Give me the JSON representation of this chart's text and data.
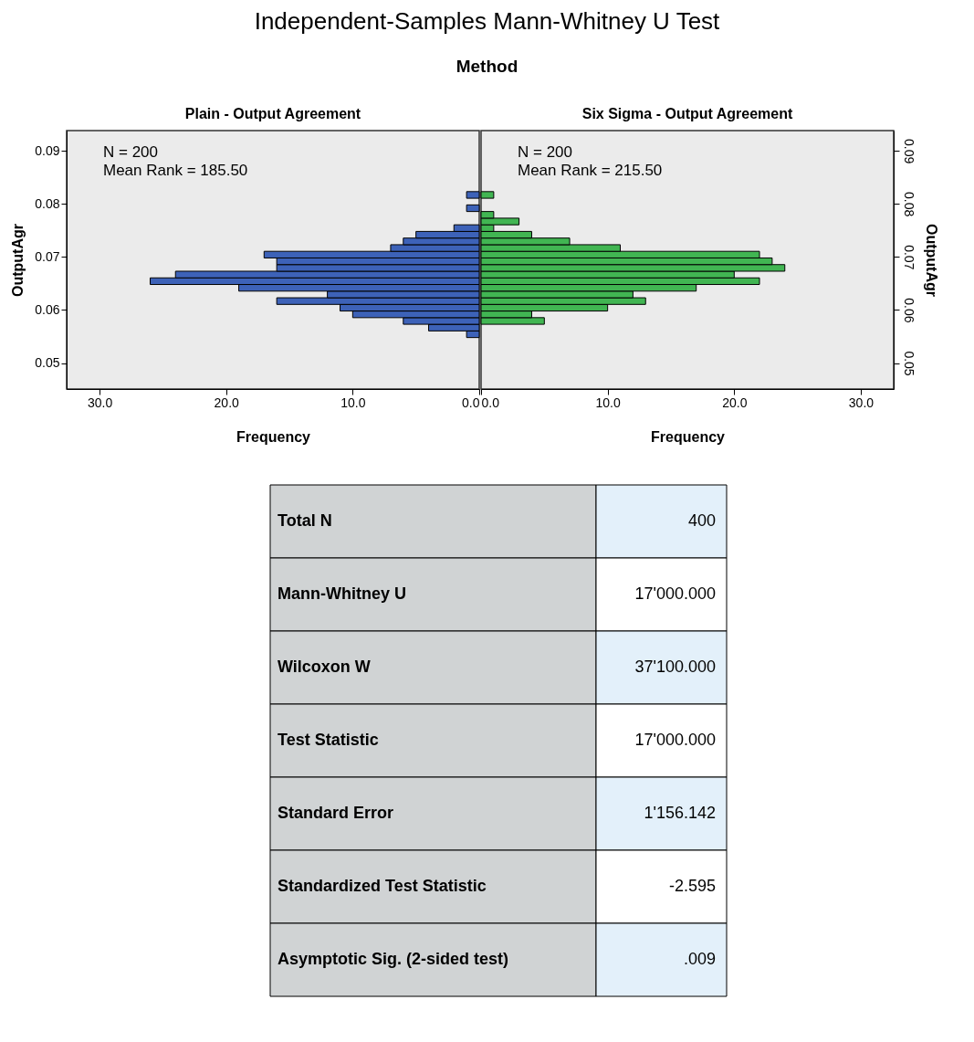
{
  "chart_data": [
    {
      "type": "histogram",
      "title": "Independent-Samples Mann-Whitney U Test",
      "subtitle": "Method",
      "orientation": "horizontal",
      "color": "#3d62b8",
      "bins": [
        0.0548,
        0.05605,
        0.0573,
        0.05855,
        0.0598,
        0.06105,
        0.0623,
        0.06355,
        0.0648,
        0.06605,
        0.0673,
        0.06855,
        0.0698,
        0.07105,
        0.0723,
        0.07355,
        0.0748,
        0.07605,
        0.0773,
        0.07855,
        0.0798,
        0.08105,
        0.0823
      ],
      "values": [
        1,
        4,
        6,
        10,
        11,
        16,
        12,
        19,
        26,
        24,
        16,
        16,
        17,
        7,
        6,
        5,
        2,
        0,
        0,
        1,
        0,
        1
      ],
      "xlim": [
        32.6,
        0
      ],
      "xticks": [
        {
          "value": 30,
          "label": "30.0"
        },
        {
          "value": 20,
          "label": "20.0"
        },
        {
          "value": 10,
          "label": "10.0"
        },
        {
          "value": 0,
          "label": "0.0"
        }
      ],
      "ylim": [
        0.0451,
        0.0938
      ],
      "yticks": [
        0.05,
        0.06,
        0.07,
        0.08,
        0.09
      ],
      "xlabel": "Frequency",
      "ylabel": "OutputAgr",
      "annotations": [
        "Plain - Output Agreement",
        "N = 200",
        "Mean Rank = 185.50"
      ]
    },
    {
      "type": "histogram",
      "orientation": "horizontal",
      "color": "#41b552",
      "bins": [
        0.0548,
        0.05605,
        0.0573,
        0.05855,
        0.0598,
        0.06105,
        0.0623,
        0.06355,
        0.0648,
        0.06605,
        0.0673,
        0.06855,
        0.0698,
        0.07105,
        0.0723,
        0.07355,
        0.0748,
        0.07605,
        0.0773,
        0.07855,
        0.0798,
        0.08105,
        0.0823
      ],
      "values": [
        0,
        0,
        5,
        4,
        10,
        13,
        12,
        17,
        22,
        20,
        24,
        23,
        22,
        11,
        7,
        4,
        1,
        3,
        1,
        0,
        0,
        1
      ],
      "xlim": [
        0,
        32.6
      ],
      "xticks": [
        {
          "value": 0,
          "label": "0.0"
        },
        {
          "value": 10,
          "label": "10.0"
        },
        {
          "value": 20,
          "label": "20.0"
        },
        {
          "value": 30,
          "label": "30.0"
        }
      ],
      "ylim": [
        0.0451,
        0.0938
      ],
      "yticks": [
        0.05,
        0.06,
        0.07,
        0.08,
        0.09
      ],
      "xlabel": "Frequency",
      "ylabel": "OutputAgr",
      "annotations": [
        "Six Sigma - Output Agreement",
        "N = 200",
        "Mean Rank = 215.50"
      ]
    },
    {
      "type": "other",
      "categories": [
        "Total N",
        "Mann-Whitney U",
        "Wilcoxon W",
        "Test Statistic",
        "Standard Error",
        "Standardized Test Statistic",
        "Asymptotic Sig. (2-sided test)"
      ],
      "value_labels": [
        "400",
        "17'000.000",
        "37'100.000",
        "17'000.000",
        "1'156.142",
        "-2.595",
        ".009"
      ]
    }
  ]
}
